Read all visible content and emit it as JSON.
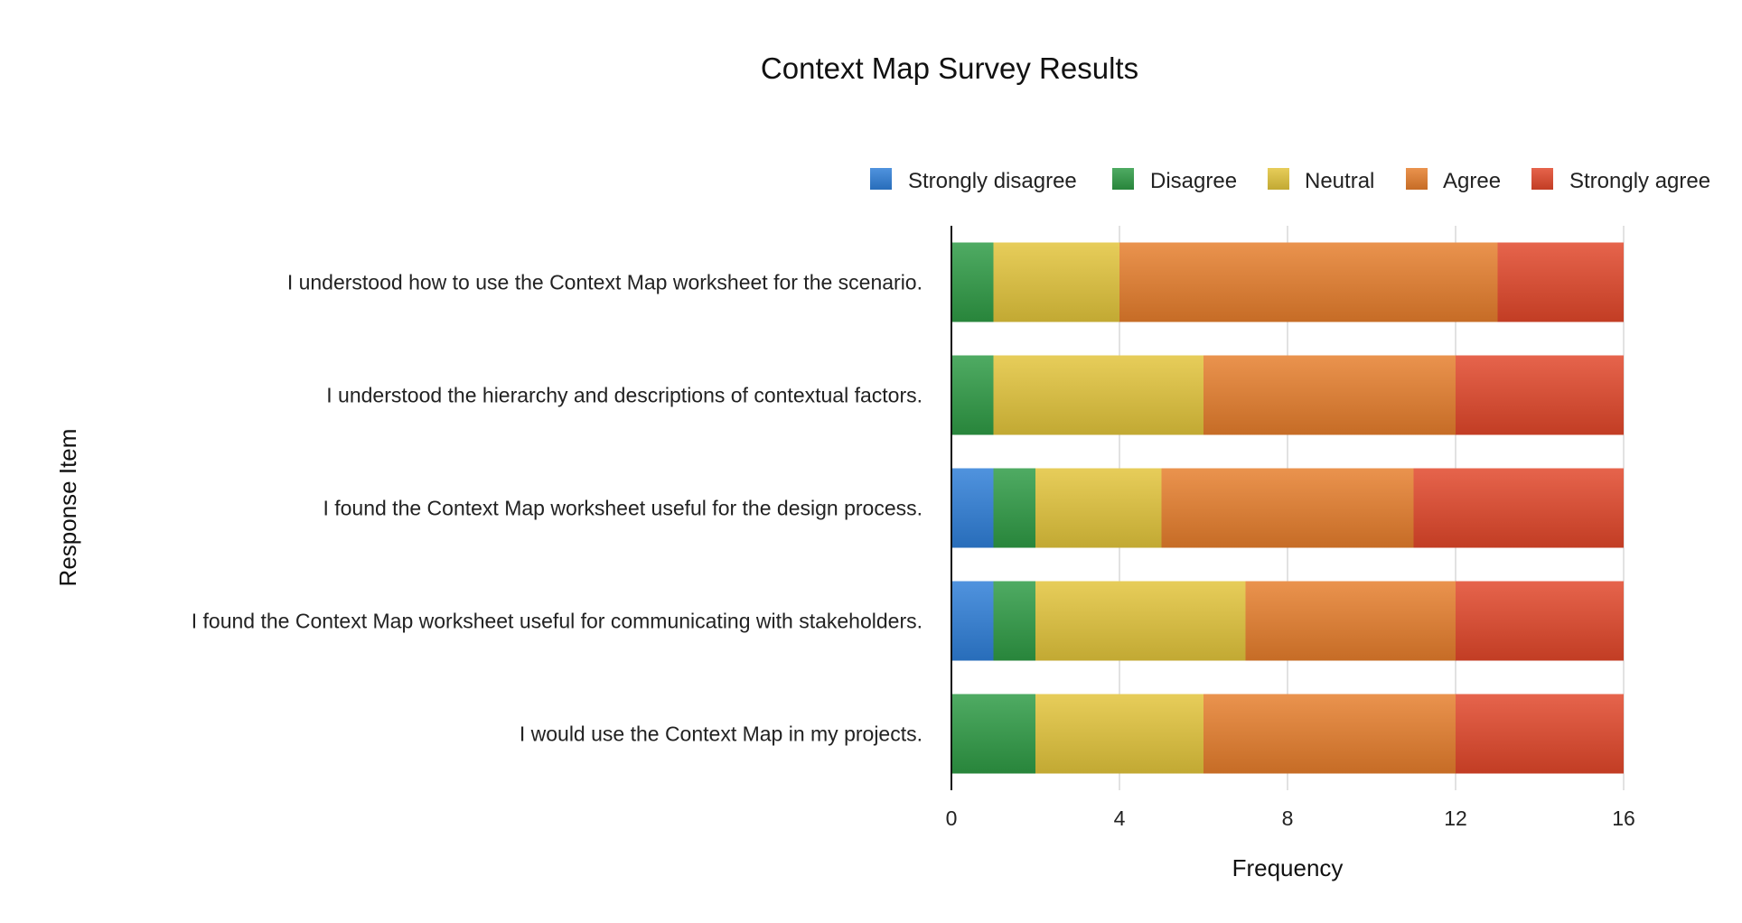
{
  "chart_data": {
    "type": "bar",
    "orientation": "horizontal",
    "stacked": true,
    "title": "Context Map Survey Results",
    "xlabel": "Frequency",
    "ylabel": "Response Item",
    "xlim": [
      0,
      16
    ],
    "xticks": [
      0,
      4,
      8,
      12,
      16
    ],
    "grid": true,
    "legend_position": "top-right",
    "categories": [
      "I understood how to use the Context Map worksheet for the scenario.",
      "I understood the hierarchy and descriptions of contextual factors.",
      "I found the Context Map worksheet useful for the design process.",
      "I found the Context Map worksheet useful for communicating with stakeholders.",
      "I would use the Context Map in my projects."
    ],
    "series": [
      {
        "name": "Strongly disagree",
        "color": "#2f7fd8",
        "values": [
          0,
          0,
          1,
          1,
          0
        ]
      },
      {
        "name": "Disagree",
        "color": "#2e9b45",
        "values": [
          1,
          1,
          1,
          1,
          2
        ]
      },
      {
        "name": "Neutral",
        "color": "#e2c43b",
        "values": [
          3,
          5,
          3,
          5,
          4
        ]
      },
      {
        "name": "Agree",
        "color": "#e67e2c",
        "values": [
          9,
          6,
          6,
          5,
          6
        ]
      },
      {
        "name": "Strongly agree",
        "color": "#e1472a",
        "values": [
          3,
          4,
          5,
          4,
          4
        ]
      }
    ]
  }
}
